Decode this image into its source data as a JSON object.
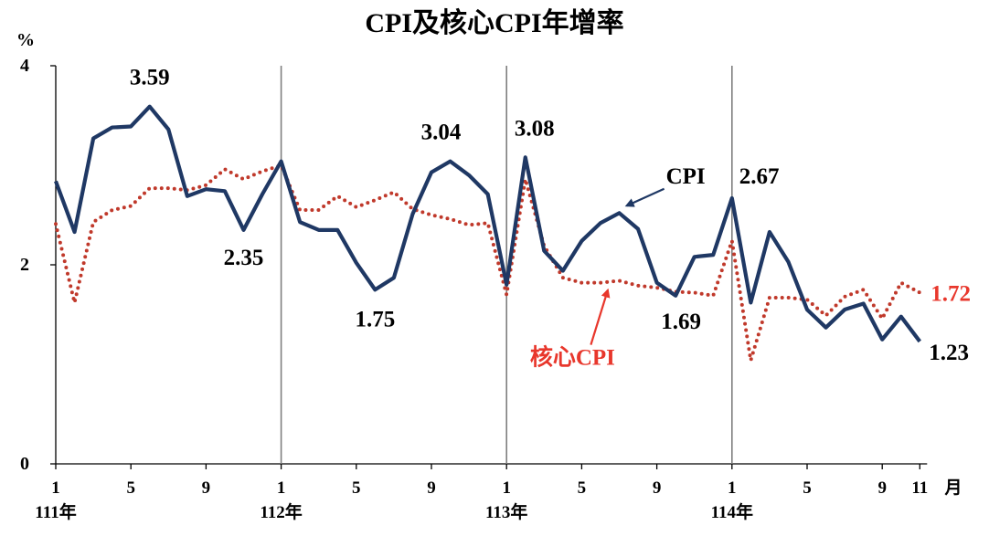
{
  "chart_data": {
    "type": "line",
    "title": "CPI及核心CPI年增率",
    "ylabel": "%",
    "ylim": [
      0,
      4
    ],
    "yticks": [
      "0",
      "2",
      "4"
    ],
    "xlabel": "月",
    "x_tick_labels": [
      "1",
      "5",
      "9",
      "1",
      "5",
      "9",
      "1",
      "5",
      "9",
      "1",
      "5",
      "9",
      "11"
    ],
    "year_labels": [
      "111年",
      "112年",
      "113年",
      "114年"
    ],
    "colors": {
      "cpi": "#1f3864",
      "core": "#c0392b",
      "core_label": "#e8372c",
      "divider": "#7f7f7f"
    },
    "series": [
      {
        "name": "CPI",
        "values": [
          2.84,
          2.33,
          3.27,
          3.38,
          3.39,
          3.59,
          3.36,
          2.69,
          2.76,
          2.74,
          2.35,
          2.71,
          3.04,
          2.43,
          2.35,
          2.35,
          2.02,
          1.75,
          1.87,
          2.51,
          2.93,
          3.04,
          2.9,
          2.71,
          1.8,
          3.08,
          2.14,
          1.94,
          2.24,
          2.42,
          2.52,
          2.36,
          1.82,
          1.69,
          2.08,
          2.1,
          2.67,
          1.62,
          2.33,
          2.03,
          1.55,
          1.37,
          1.55,
          1.61,
          1.25,
          1.48,
          1.23
        ]
      },
      {
        "name": "核心CPI",
        "values": [
          2.41,
          1.62,
          2.43,
          2.55,
          2.59,
          2.77,
          2.77,
          2.75,
          2.8,
          2.96,
          2.86,
          2.94,
          3.0,
          2.55,
          2.55,
          2.69,
          2.58,
          2.65,
          2.73,
          2.56,
          2.5,
          2.46,
          2.4,
          2.42,
          1.7,
          2.86,
          2.19,
          1.87,
          1.82,
          1.82,
          1.84,
          1.79,
          1.77,
          1.73,
          1.72,
          1.69,
          2.24,
          1.04,
          1.67,
          1.67,
          1.65,
          1.49,
          1.68,
          1.75,
          1.46,
          1.82,
          1.72
        ]
      }
    ],
    "annotations": [
      {
        "text": "3.59"
      },
      {
        "text": "2.35"
      },
      {
        "text": "1.75"
      },
      {
        "text": "3.04"
      },
      {
        "text": "3.08"
      },
      {
        "text": "1.69"
      },
      {
        "text": "2.67"
      },
      {
        "text": "1.23"
      },
      {
        "text": "1.72"
      }
    ]
  }
}
